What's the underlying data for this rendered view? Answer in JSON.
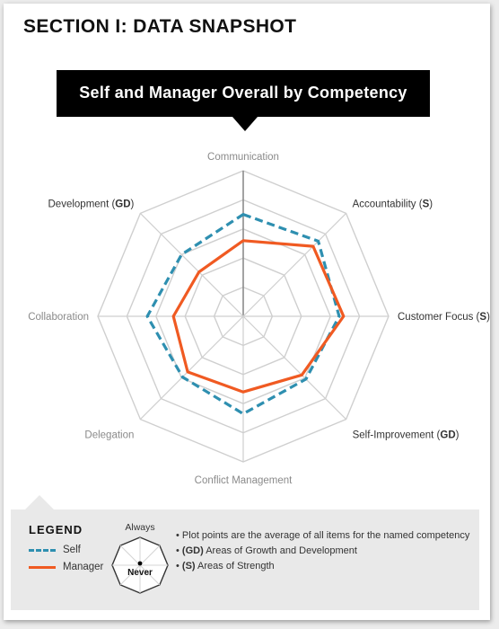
{
  "page": {
    "section_title": "SECTION I: DATA SNAPSHOT",
    "banner_title": "Self and Manager Overall by Competency"
  },
  "chart_data": {
    "type": "radar",
    "title": "Self and Manager Overall by Competency",
    "rlim": [
      0,
      5
    ],
    "grid": true,
    "grid_levels": 5,
    "axes": [
      {
        "label": "Communication",
        "code": "",
        "muted": true
      },
      {
        "label": "Accountability",
        "code": "S",
        "muted": false
      },
      {
        "label": "Customer Focus",
        "code": "S",
        "muted": false
      },
      {
        "label": "Self-Improvement",
        "code": "GD",
        "muted": false
      },
      {
        "label": "Conflict Management",
        "code": "",
        "muted": true
      },
      {
        "label": "Delegation",
        "code": "",
        "muted": true
      },
      {
        "label": "Collaboration",
        "code": "",
        "muted": true
      },
      {
        "label": "Development",
        "code": "GD",
        "muted": false
      }
    ],
    "series": [
      {
        "name": "Self",
        "color": "#2e8fb0",
        "style": "dashed",
        "values": [
          3.5,
          3.65,
          3.3,
          3.05,
          3.35,
          2.95,
          3.3,
          3.0
        ]
      },
      {
        "name": "Manager",
        "color": "#f05a22",
        "style": "solid",
        "values": [
          2.6,
          3.4,
          3.45,
          2.85,
          2.6,
          2.7,
          2.4,
          2.15
        ]
      }
    ]
  },
  "legend": {
    "title": "LEGEND",
    "items": [
      {
        "label": "Self",
        "color": "#2e8fb0"
      },
      {
        "label": "Manager",
        "color": "#f05a22"
      }
    ],
    "scale_top_label": "Always",
    "scale_center_label": "Never",
    "notes": [
      {
        "prefix": "",
        "text": "Plot points are the average of all items for the named competency"
      },
      {
        "prefix": "(GD)",
        "text": "Areas of Growth and Development"
      },
      {
        "prefix": "(S)",
        "text": "Areas of Strength"
      }
    ]
  }
}
